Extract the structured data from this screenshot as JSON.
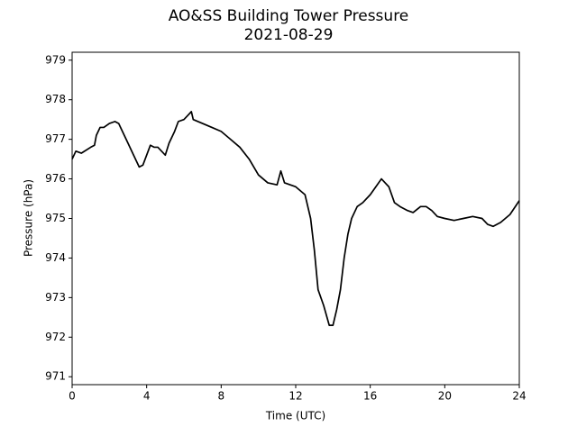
{
  "chart_data": {
    "type": "line",
    "title": "AO&SS Building Tower Pressure",
    "subtitle": "2021-08-29",
    "x_label": "Time (UTC)",
    "y_label": "Pressure (hPa)",
    "x": [
      0,
      0.2,
      0.5,
      1,
      1.2,
      1.3,
      1.5,
      1.7,
      2,
      2.3,
      2.5,
      2.6,
      3,
      3.3,
      3.6,
      3.8,
      4,
      4.2,
      4.4,
      4.6,
      4.8,
      5,
      5.2,
      5.5,
      5.7,
      6,
      6.2,
      6.4,
      6.5,
      7,
      7.5,
      8,
      8.5,
      9,
      9.5,
      10,
      10.5,
      11,
      11.2,
      11.4,
      12,
      12.5,
      12.8,
      13,
      13.2,
      13.5,
      13.8,
      14,
      14.2,
      14.4,
      14.6,
      14.8,
      15,
      15.3,
      15.6,
      16,
      16.3,
      16.6,
      17,
      17.3,
      17.6,
      18,
      18.3,
      18.7,
      19,
      19.3,
      19.6,
      20,
      20.5,
      21,
      21.5,
      22,
      22.3,
      22.6,
      23,
      23.5,
      24
    ],
    "series": [
      {
        "name": "Pressure",
        "color": "#000000",
        "values": [
          976.5,
          976.7,
          976.65,
          976.8,
          976.85,
          977.1,
          977.3,
          977.3,
          977.4,
          977.45,
          977.4,
          977.3,
          976.9,
          976.6,
          976.3,
          976.35,
          976.6,
          976.85,
          976.8,
          976.8,
          976.7,
          976.6,
          976.9,
          977.2,
          977.45,
          977.5,
          977.6,
          977.7,
          977.5,
          977.4,
          977.3,
          977.2,
          977.0,
          976.8,
          976.5,
          976.1,
          975.9,
          975.85,
          976.2,
          975.9,
          975.8,
          975.6,
          975.0,
          974.2,
          973.2,
          972.8,
          972.3,
          972.3,
          972.7,
          973.2,
          974.0,
          974.6,
          975.0,
          975.3,
          975.4,
          975.6,
          975.8,
          976.0,
          975.8,
          975.4,
          975.3,
          975.2,
          975.15,
          975.3,
          975.3,
          975.2,
          975.05,
          975.0,
          974.95,
          975.0,
          975.05,
          975.0,
          974.85,
          974.8,
          974.9,
          975.1,
          975.45
        ]
      }
    ],
    "xlim": [
      0,
      24
    ],
    "xticks": [
      0,
      4,
      8,
      12,
      16,
      20,
      24
    ],
    "ylim": [
      970.8,
      979.2
    ],
    "yticks": [
      971,
      972,
      973,
      974,
      975,
      976,
      977,
      978,
      979
    ]
  }
}
